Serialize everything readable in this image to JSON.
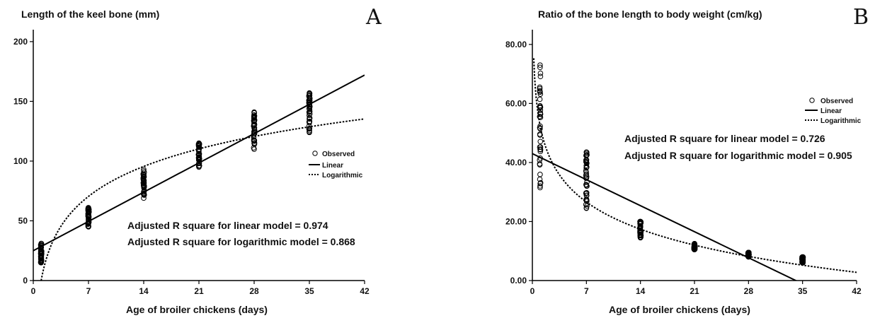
{
  "chart_data": [
    {
      "type": "scatter",
      "title": "Length of the keel bone (mm)",
      "panel": "A",
      "xlabel": "Age of broiler chickens (days)",
      "ylabel": "",
      "xlim": [
        0,
        42
      ],
      "ylim": [
        0,
        210
      ],
      "xticks": [
        "0",
        "7",
        "14",
        "21",
        "28",
        "35",
        "42"
      ],
      "xtick_values": [
        0,
        7,
        14,
        21,
        28,
        35,
        42
      ],
      "yticks": [
        "0",
        "50",
        "100",
        "150",
        "200"
      ],
      "ytick_values": [
        0,
        50,
        100,
        150,
        200
      ],
      "observed": [
        {
          "x": 1,
          "min": 15,
          "max": 31
        },
        {
          "x": 7,
          "min": 45,
          "max": 61
        },
        {
          "x": 14,
          "min": 69,
          "max": 93
        },
        {
          "x": 21,
          "min": 95,
          "max": 115
        },
        {
          "x": 28,
          "min": 110,
          "max": 141
        },
        {
          "x": 35,
          "min": 124,
          "max": 157
        }
      ],
      "linear_fit": {
        "intercept": 25,
        "slope": 3.5
      },
      "log_fit": {
        "a": 0,
        "b": 36.2
      },
      "legend": [
        "Observed",
        "Linear",
        "Logarithmic"
      ],
      "legend_position": "right",
      "annotations": [
        "Adjusted R square for linear model = 0.974",
        "Adjusted R square for logarithmic model = 0.868"
      ]
    },
    {
      "type": "scatter",
      "title": "Ratio of the bone length to body weight (cm/kg)",
      "panel": "B",
      "xlabel": "Age of broiler chickens (days)",
      "ylabel": "",
      "xlim": [
        0,
        42
      ],
      "ylim": [
        0,
        85
      ],
      "xticks": [
        "0",
        "7",
        "14",
        "21",
        "28",
        "35",
        "42"
      ],
      "xtick_values": [
        0,
        7,
        14,
        21,
        28,
        35,
        42
      ],
      "yticks": [
        "0.00",
        "20.00",
        "40.00",
        "60.00",
        "80.00"
      ],
      "ytick_values": [
        0,
        20,
        40,
        60,
        80
      ],
      "observed": [
        {
          "x": 1,
          "min": 31.5,
          "max": 73
        },
        {
          "x": 7,
          "min": 24.5,
          "max": 43.5
        },
        {
          "x": 14,
          "min": 14.5,
          "max": 20
        },
        {
          "x": 21,
          "min": 10.5,
          "max": 12.5
        },
        {
          "x": 28,
          "min": 8,
          "max": 9.5
        },
        {
          "x": 35,
          "min": 6,
          "max": 8
        }
      ],
      "linear_fit": {
        "intercept": 43,
        "slope": -1.26
      },
      "log_fit": {
        "a": 52.5,
        "b": -13.3
      },
      "legend": [
        "Observed",
        "Linear",
        "Logarithmic"
      ],
      "legend_position": "top-right",
      "annotations": [
        "Adjusted R square for linear model = 0.726",
        "Adjusted R square for logarithmic model = 0.905"
      ]
    }
  ]
}
